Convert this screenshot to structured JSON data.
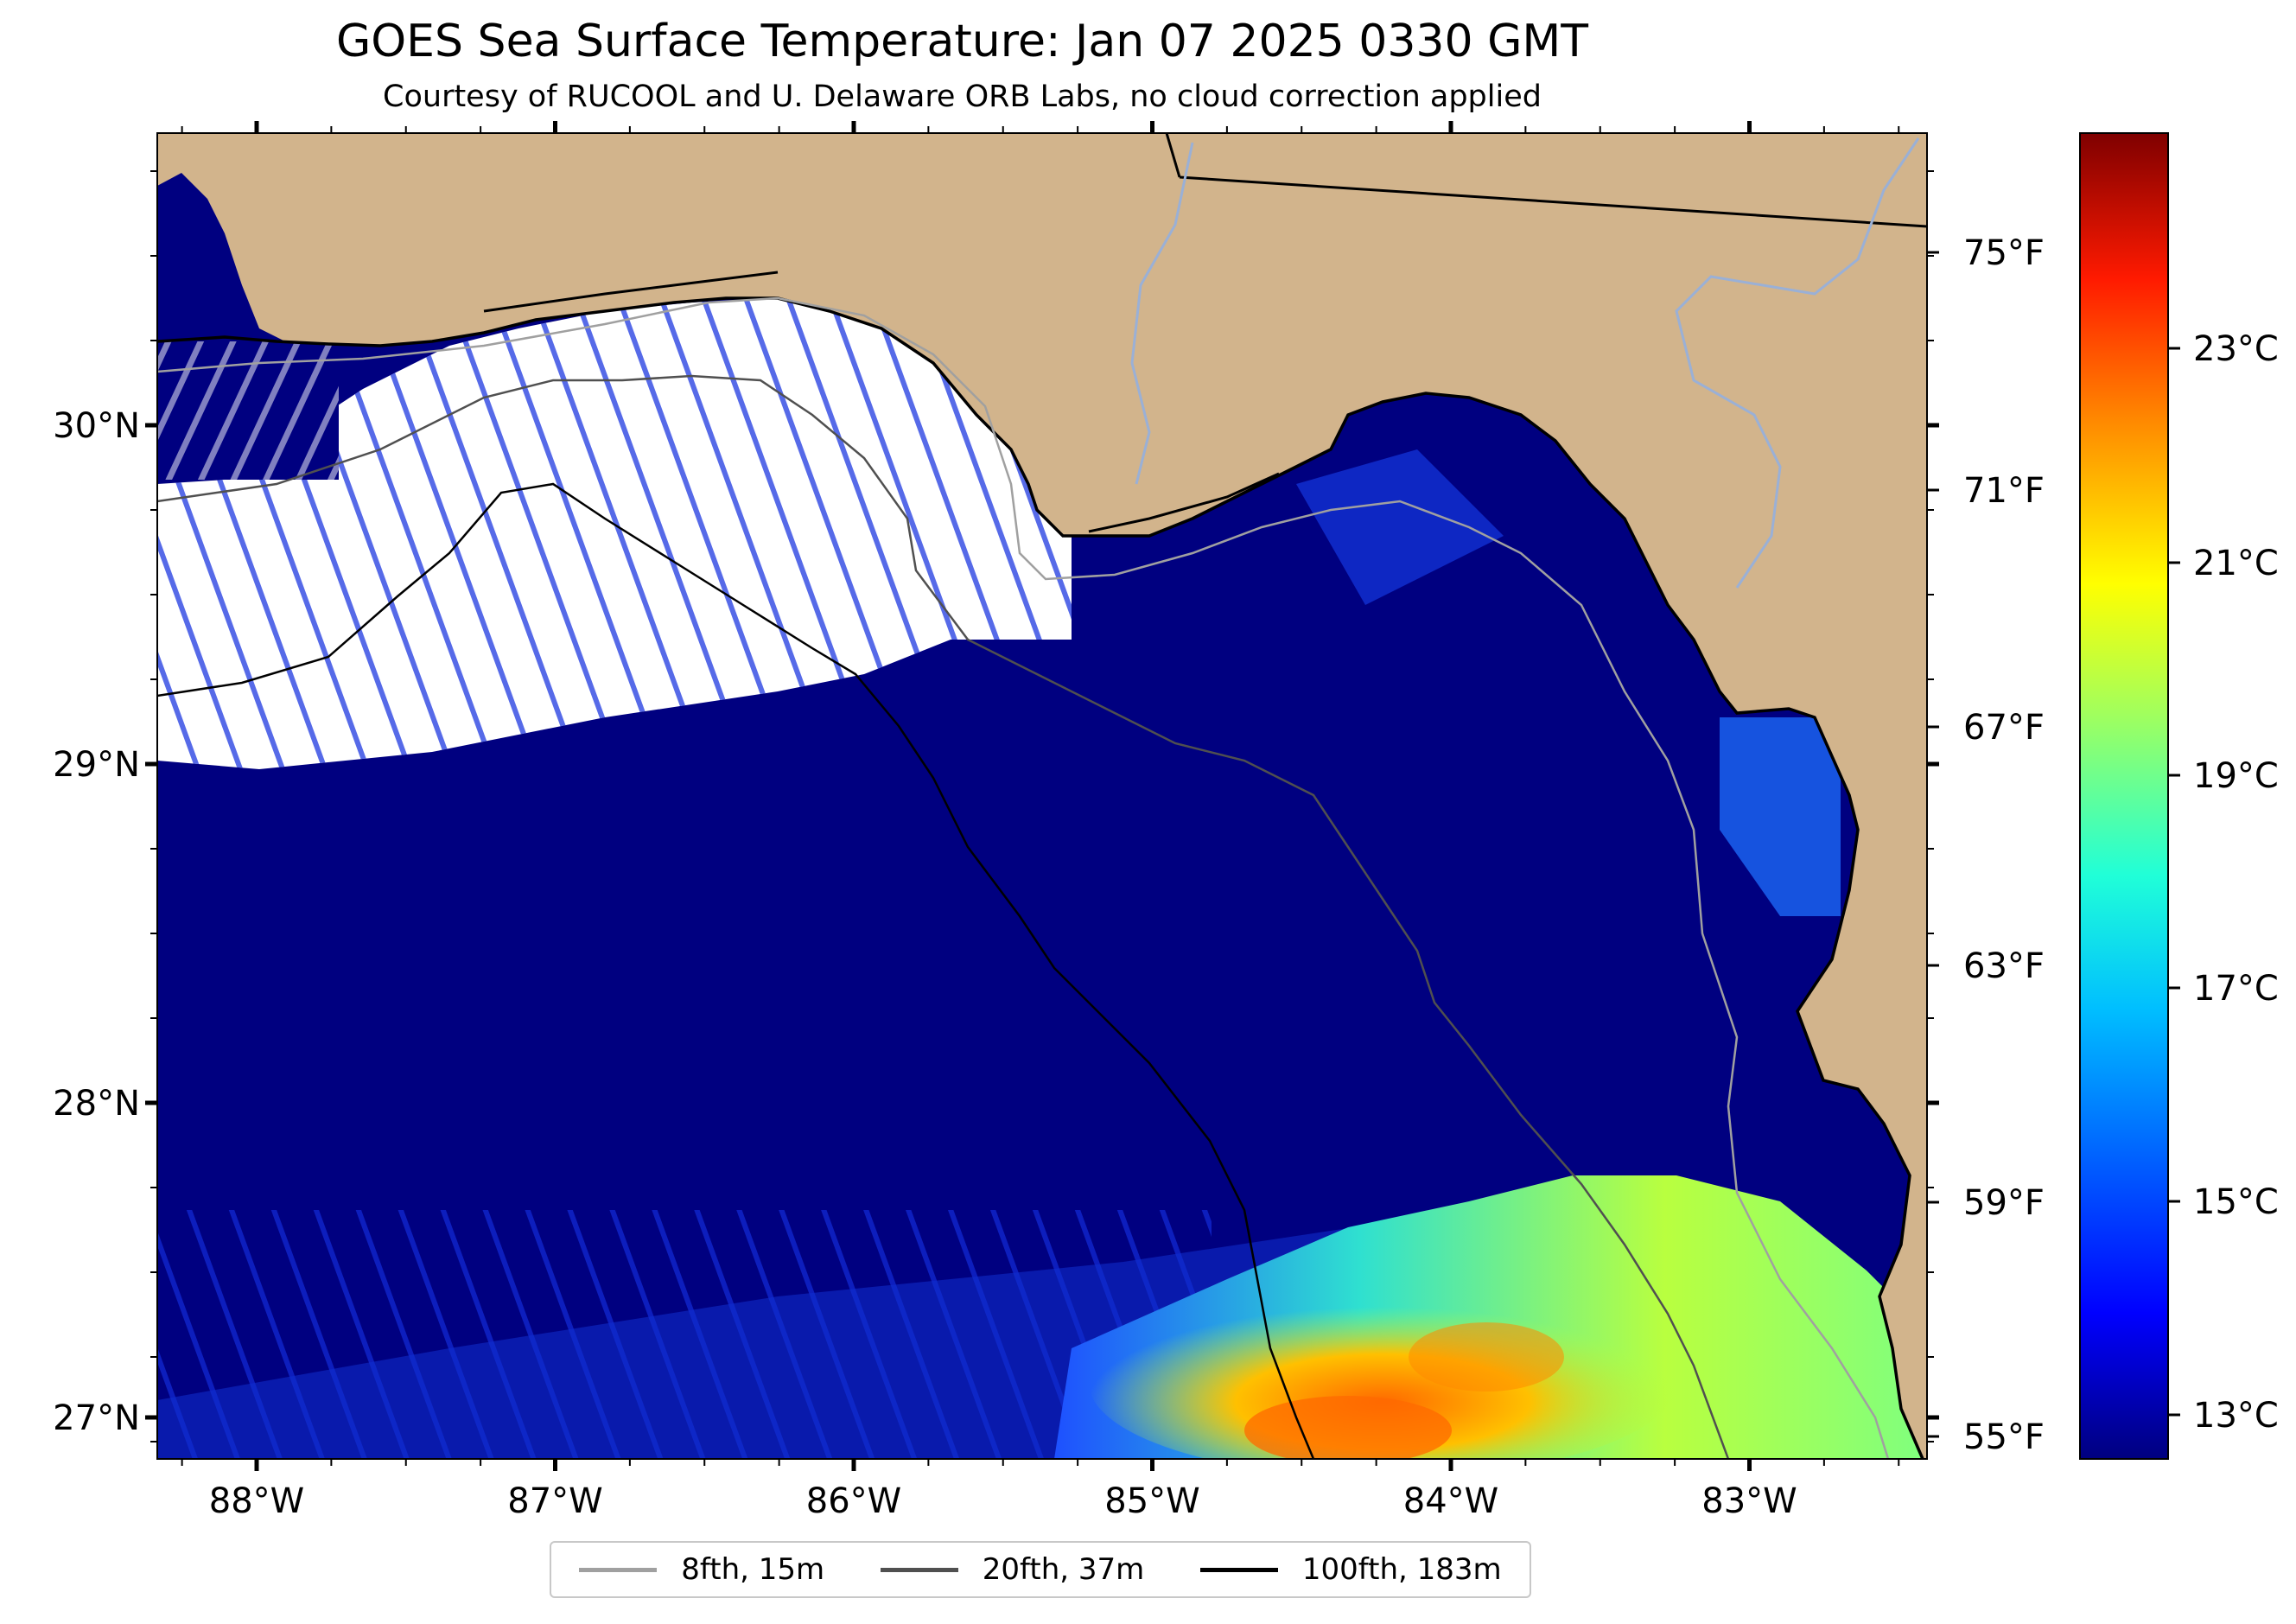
{
  "title": "GOES Sea Surface Temperature: Jan 07 2025 0330 GMT",
  "subtitle": "Courtesy of RUCOOL and U. Delaware ORB Labs, no cloud correction applied",
  "map": {
    "lon_labels": [
      "88°W",
      "87°W",
      "86°W",
      "85°W",
      "84°W",
      "83°W"
    ],
    "lat_labels": [
      "30°N",
      "29°N",
      "28°N",
      "27°N"
    ],
    "fahrenheit_labels": [
      "75°F",
      "71°F",
      "67°F",
      "63°F",
      "59°F",
      "55°F"
    ]
  },
  "colorbar": {
    "labels": [
      "23°C",
      "21°C",
      "19°C",
      "17°C",
      "15°C",
      "13°C"
    ],
    "colormap": [
      "#00007f",
      "#0000ff",
      "#007fff",
      "#00ffff",
      "#7fff7f",
      "#ffff00",
      "#ff7f00",
      "#ff0000",
      "#7f0000"
    ]
  },
  "colors": {
    "land": "#d2b48c",
    "ocean_cold": "#000080",
    "no_data": "#ffffff"
  },
  "legend": [
    {
      "label": "8fth, 15m",
      "color": "#a0a0a0"
    },
    {
      "label": "20fth, 37m",
      "color": "#505050"
    },
    {
      "label": "100fth, 183m",
      "color": "#000000"
    }
  ]
}
